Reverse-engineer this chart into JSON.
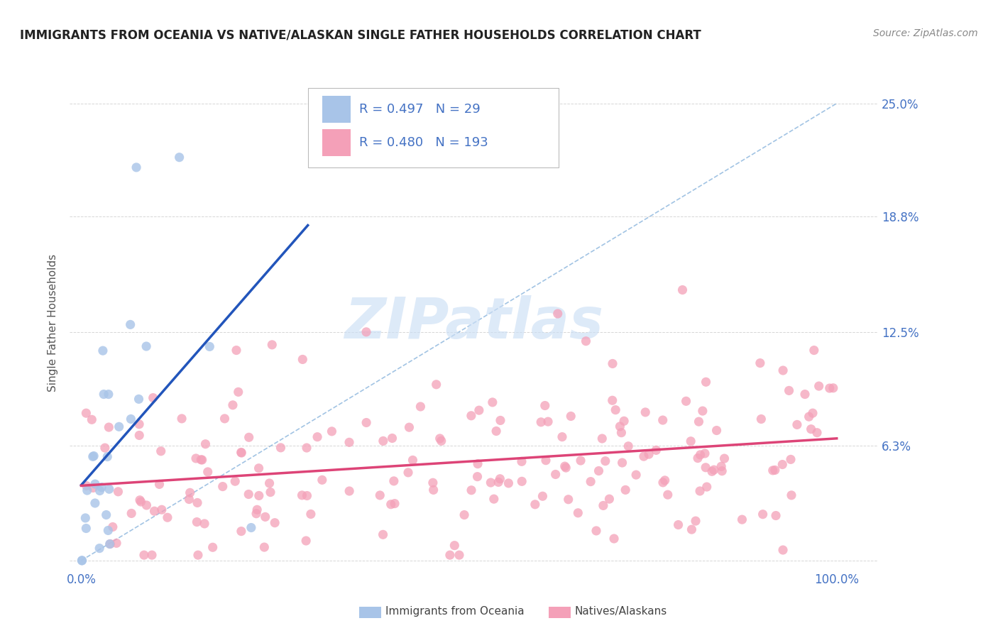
{
  "title": "IMMIGRANTS FROM OCEANIA VS NATIVE/ALASKAN SINGLE FATHER HOUSEHOLDS CORRELATION CHART",
  "source": "Source: ZipAtlas.com",
  "ylabel": "Single Father Households",
  "blue_R": 0.497,
  "blue_N": 29,
  "pink_R": 0.48,
  "pink_N": 193,
  "blue_color": "#a8c4e8",
  "pink_color": "#f4a0b8",
  "blue_line_color": "#2255bb",
  "pink_line_color": "#dd4477",
  "diag_color": "#7aaad8",
  "ytick_vals": [
    0.0,
    0.063,
    0.125,
    0.188,
    0.25
  ],
  "ytick_labels": [
    "",
    "6.3%",
    "12.5%",
    "18.8%",
    "25.0%"
  ],
  "xtick_vals": [
    0.0,
    1.0
  ],
  "xtick_labels": [
    "0.0%",
    "100.0%"
  ],
  "xlim": [
    -0.015,
    1.055
  ],
  "ylim": [
    -0.005,
    0.265
  ],
  "watermark": "ZIPatlas",
  "legend_blue_label": "Immigrants from Oceania",
  "legend_pink_label": "Natives/Alaskans",
  "axis_label_color": "#4472c4",
  "title_color": "#222222",
  "source_color": "#888888",
  "background_color": "#ffffff",
  "grid_color": "#cccccc",
  "legend_text_black": "R = ",
  "legend_text_color": "#4472c4"
}
